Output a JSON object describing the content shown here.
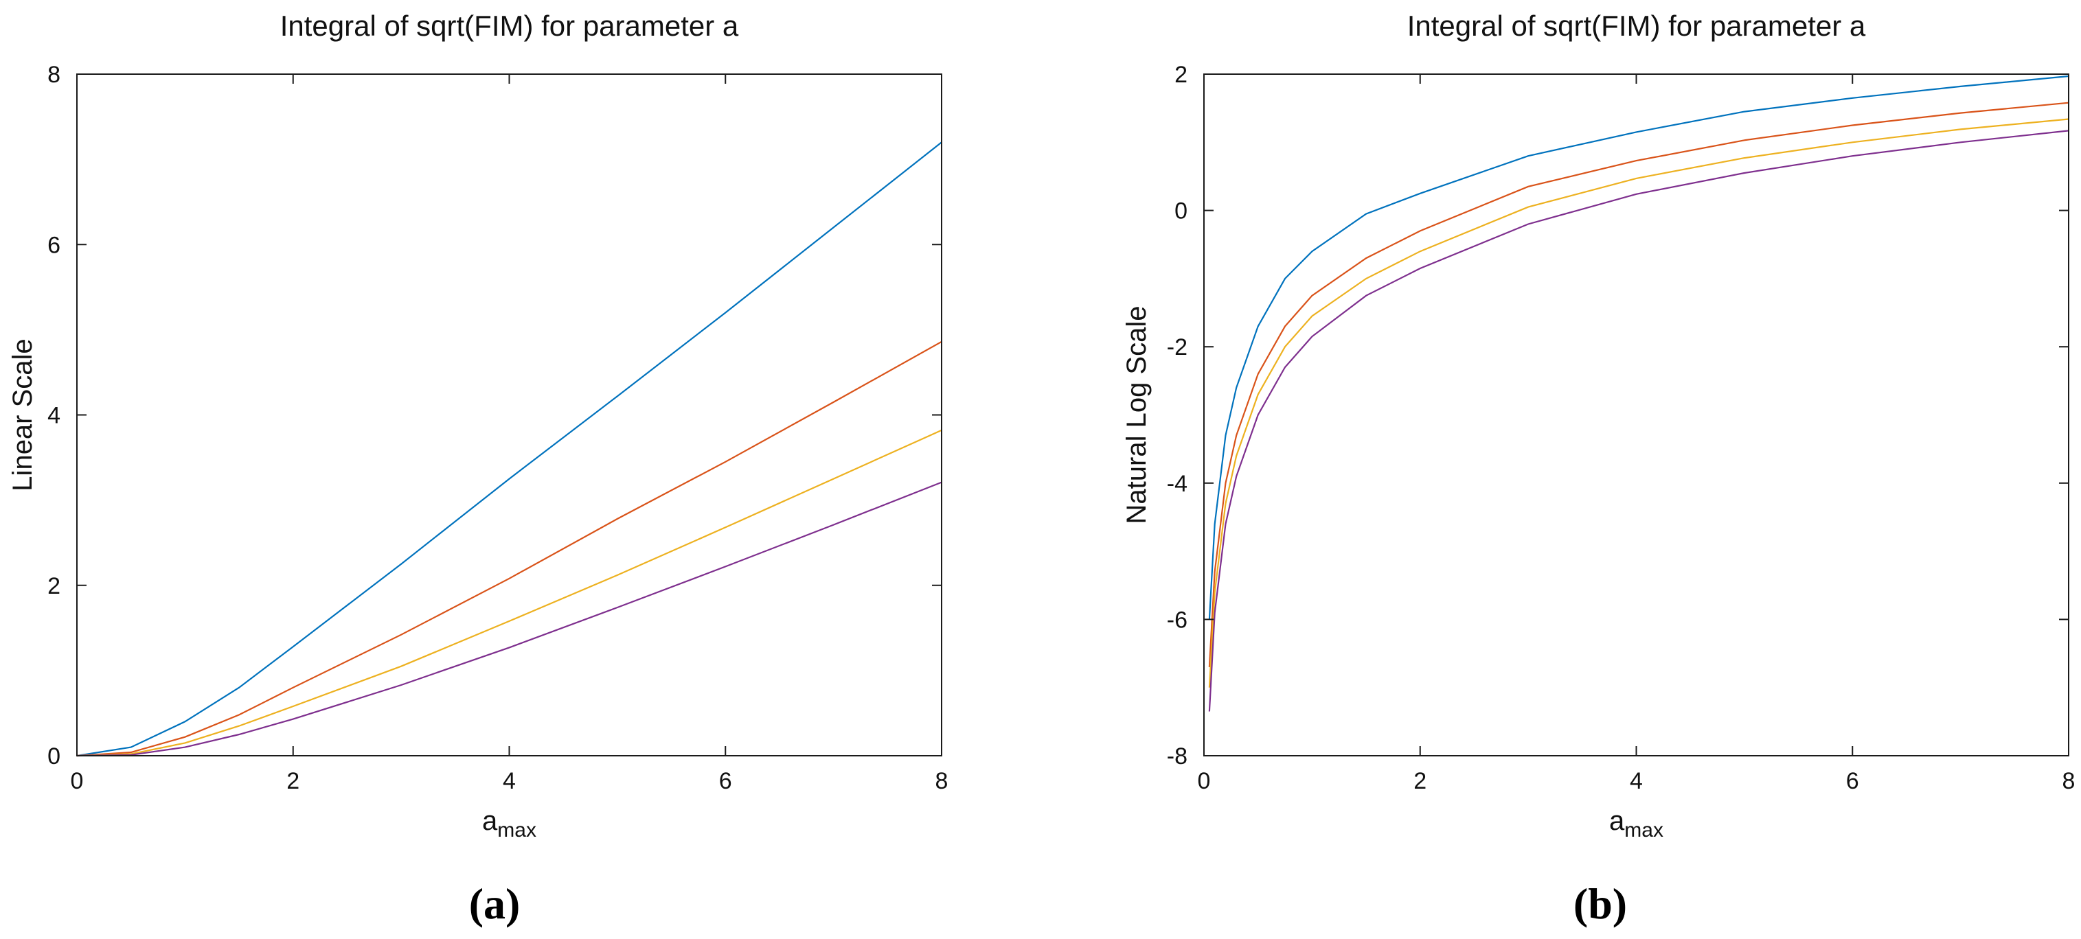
{
  "chart_data": [
    {
      "panel": "a",
      "caption": "(a)",
      "type": "line",
      "title": "Integral of sqrt(FIM) for parameter a",
      "xlabel_main": "a",
      "xlabel_sub": "max",
      "ylabel": "Linear Scale",
      "xlim": [
        0,
        8
      ],
      "ylim": [
        0,
        8
      ],
      "xticks": [
        "0",
        "2",
        "4",
        "6",
        "8"
      ],
      "yticks": [
        "0",
        "2",
        "4",
        "6",
        "8"
      ],
      "grid": false,
      "series": [
        {
          "color": "#0072BD",
          "x": [
            0,
            0.5,
            1,
            1.5,
            2,
            3,
            4,
            5,
            6,
            7,
            8
          ],
          "y": [
            0,
            0.1,
            0.4,
            0.8,
            1.28,
            2.25,
            3.25,
            4.22,
            5.2,
            6.2,
            7.2
          ]
        },
        {
          "color": "#D95319",
          "x": [
            0,
            0.5,
            1,
            1.5,
            2,
            3,
            4,
            5,
            6,
            7,
            8
          ],
          "y": [
            0,
            0.04,
            0.22,
            0.48,
            0.8,
            1.42,
            2.08,
            2.78,
            3.45,
            4.15,
            4.86
          ]
        },
        {
          "color": "#EDB120",
          "x": [
            0,
            0.5,
            1,
            1.5,
            2,
            3,
            4,
            5,
            6,
            7,
            8
          ],
          "y": [
            0,
            0.02,
            0.15,
            0.35,
            0.58,
            1.05,
            1.58,
            2.12,
            2.68,
            3.25,
            3.82
          ]
        },
        {
          "color": "#7E2F8E",
          "x": [
            0,
            0.5,
            1,
            1.5,
            2,
            3,
            4,
            5,
            6,
            7,
            8
          ],
          "y": [
            0,
            0.01,
            0.1,
            0.25,
            0.43,
            0.83,
            1.27,
            1.74,
            2.22,
            2.71,
            3.21
          ]
        }
      ]
    },
    {
      "panel": "b",
      "caption": "(b)",
      "type": "line",
      "title": "Integral of sqrt(FIM) for parameter a",
      "xlabel_main": "a",
      "xlabel_sub": "max",
      "ylabel": "Natural Log Scale",
      "xlim": [
        0,
        8
      ],
      "ylim": [
        -8,
        2
      ],
      "xticks": [
        "0",
        "2",
        "4",
        "6",
        "8"
      ],
      "yticks": [
        "-8",
        "-6",
        "-4",
        "-2",
        "0",
        "2"
      ],
      "grid": false,
      "series": [
        {
          "color": "#0072BD",
          "x": [
            0.05,
            0.1,
            0.2,
            0.3,
            0.5,
            0.75,
            1,
            1.5,
            2,
            3,
            4,
            5,
            6,
            7,
            8
          ],
          "y": [
            -6.0,
            -4.6,
            -3.3,
            -2.6,
            -1.7,
            -1.0,
            -0.6,
            -0.05,
            0.25,
            0.8,
            1.15,
            1.45,
            1.65,
            1.82,
            1.97
          ]
        },
        {
          "color": "#D95319",
          "x": [
            0.05,
            0.1,
            0.2,
            0.3,
            0.5,
            0.75,
            1,
            1.5,
            2,
            3,
            4,
            5,
            6,
            7,
            8
          ],
          "y": [
            -6.7,
            -5.3,
            -4.0,
            -3.3,
            -2.4,
            -1.7,
            -1.25,
            -0.7,
            -0.3,
            0.35,
            0.73,
            1.03,
            1.25,
            1.43,
            1.58
          ]
        },
        {
          "color": "#EDB120",
          "x": [
            0.05,
            0.1,
            0.2,
            0.3,
            0.5,
            0.75,
            1,
            1.5,
            2,
            3,
            4,
            5,
            6,
            7,
            8
          ],
          "y": [
            -7.0,
            -5.6,
            -4.3,
            -3.6,
            -2.7,
            -2.0,
            -1.55,
            -1.0,
            -0.6,
            0.05,
            0.47,
            0.77,
            1.0,
            1.19,
            1.34
          ]
        },
        {
          "color": "#7E2F8E",
          "x": [
            0.05,
            0.1,
            0.2,
            0.3,
            0.5,
            0.75,
            1,
            1.5,
            2,
            3,
            4,
            5,
            6,
            7,
            8
          ],
          "y": [
            -7.35,
            -5.9,
            -4.6,
            -3.9,
            -3.0,
            -2.3,
            -1.85,
            -1.25,
            -0.85,
            -0.2,
            0.24,
            0.55,
            0.8,
            1.0,
            1.17
          ]
        }
      ]
    }
  ]
}
